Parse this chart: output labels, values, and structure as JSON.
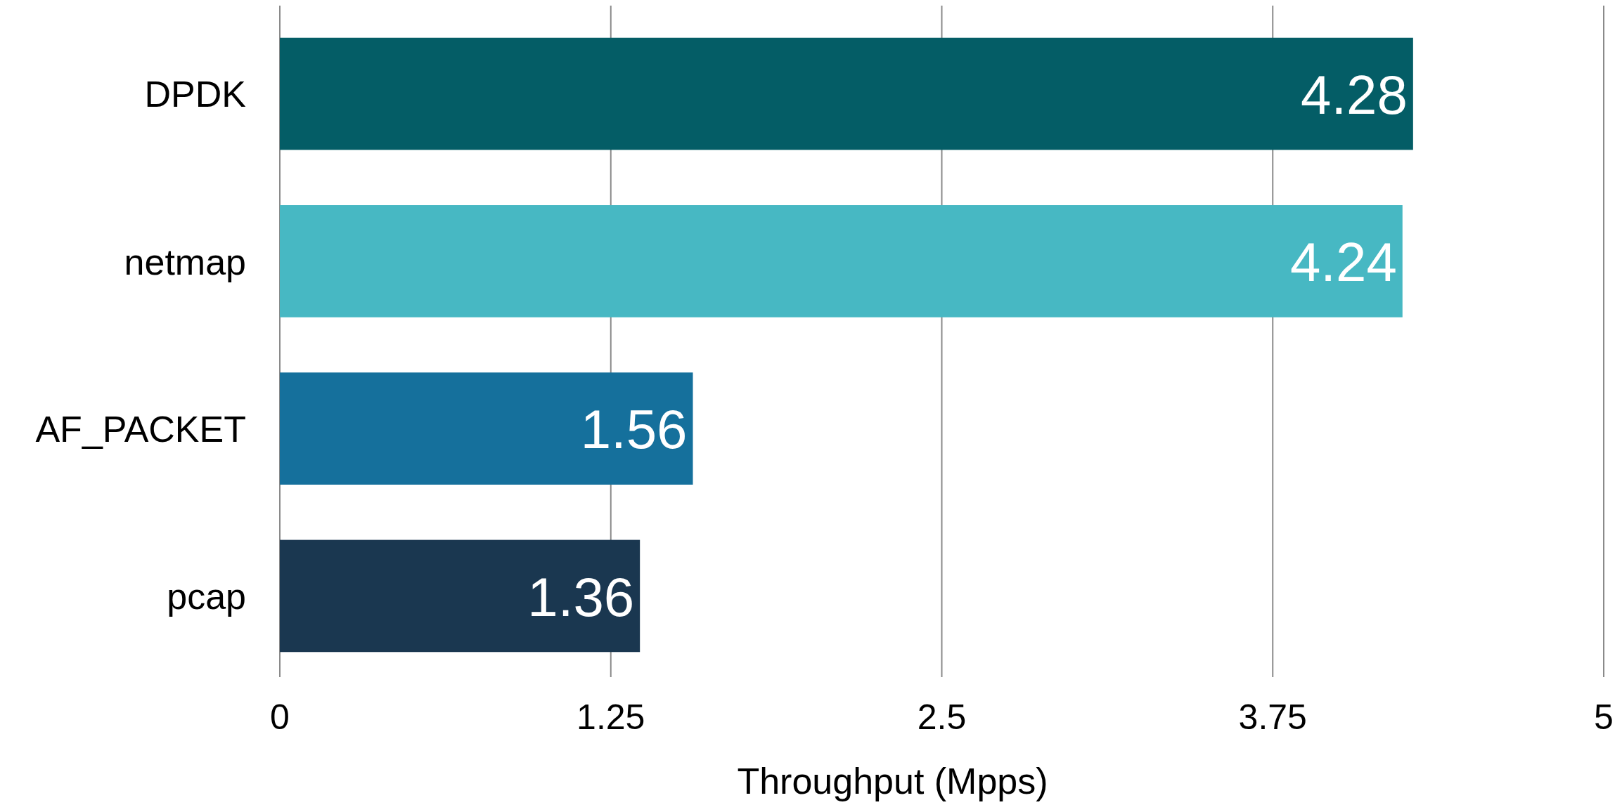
{
  "chart_data": {
    "type": "bar",
    "orientation": "horizontal",
    "xlabel": "Throughput (Mpps)",
    "categories": [
      "DPDK",
      "netmap",
      "AF_PACKET",
      "pcap"
    ],
    "values": [
      4.28,
      4.24,
      1.56,
      1.36
    ],
    "colors": [
      "#045d66",
      "#47b8c3",
      "#15709c",
      "#1a3750"
    ],
    "xlim": [
      0,
      5
    ],
    "xticks": [
      0,
      1.25,
      2.5,
      3.75,
      5
    ],
    "grid": "x",
    "data_labels": true
  }
}
